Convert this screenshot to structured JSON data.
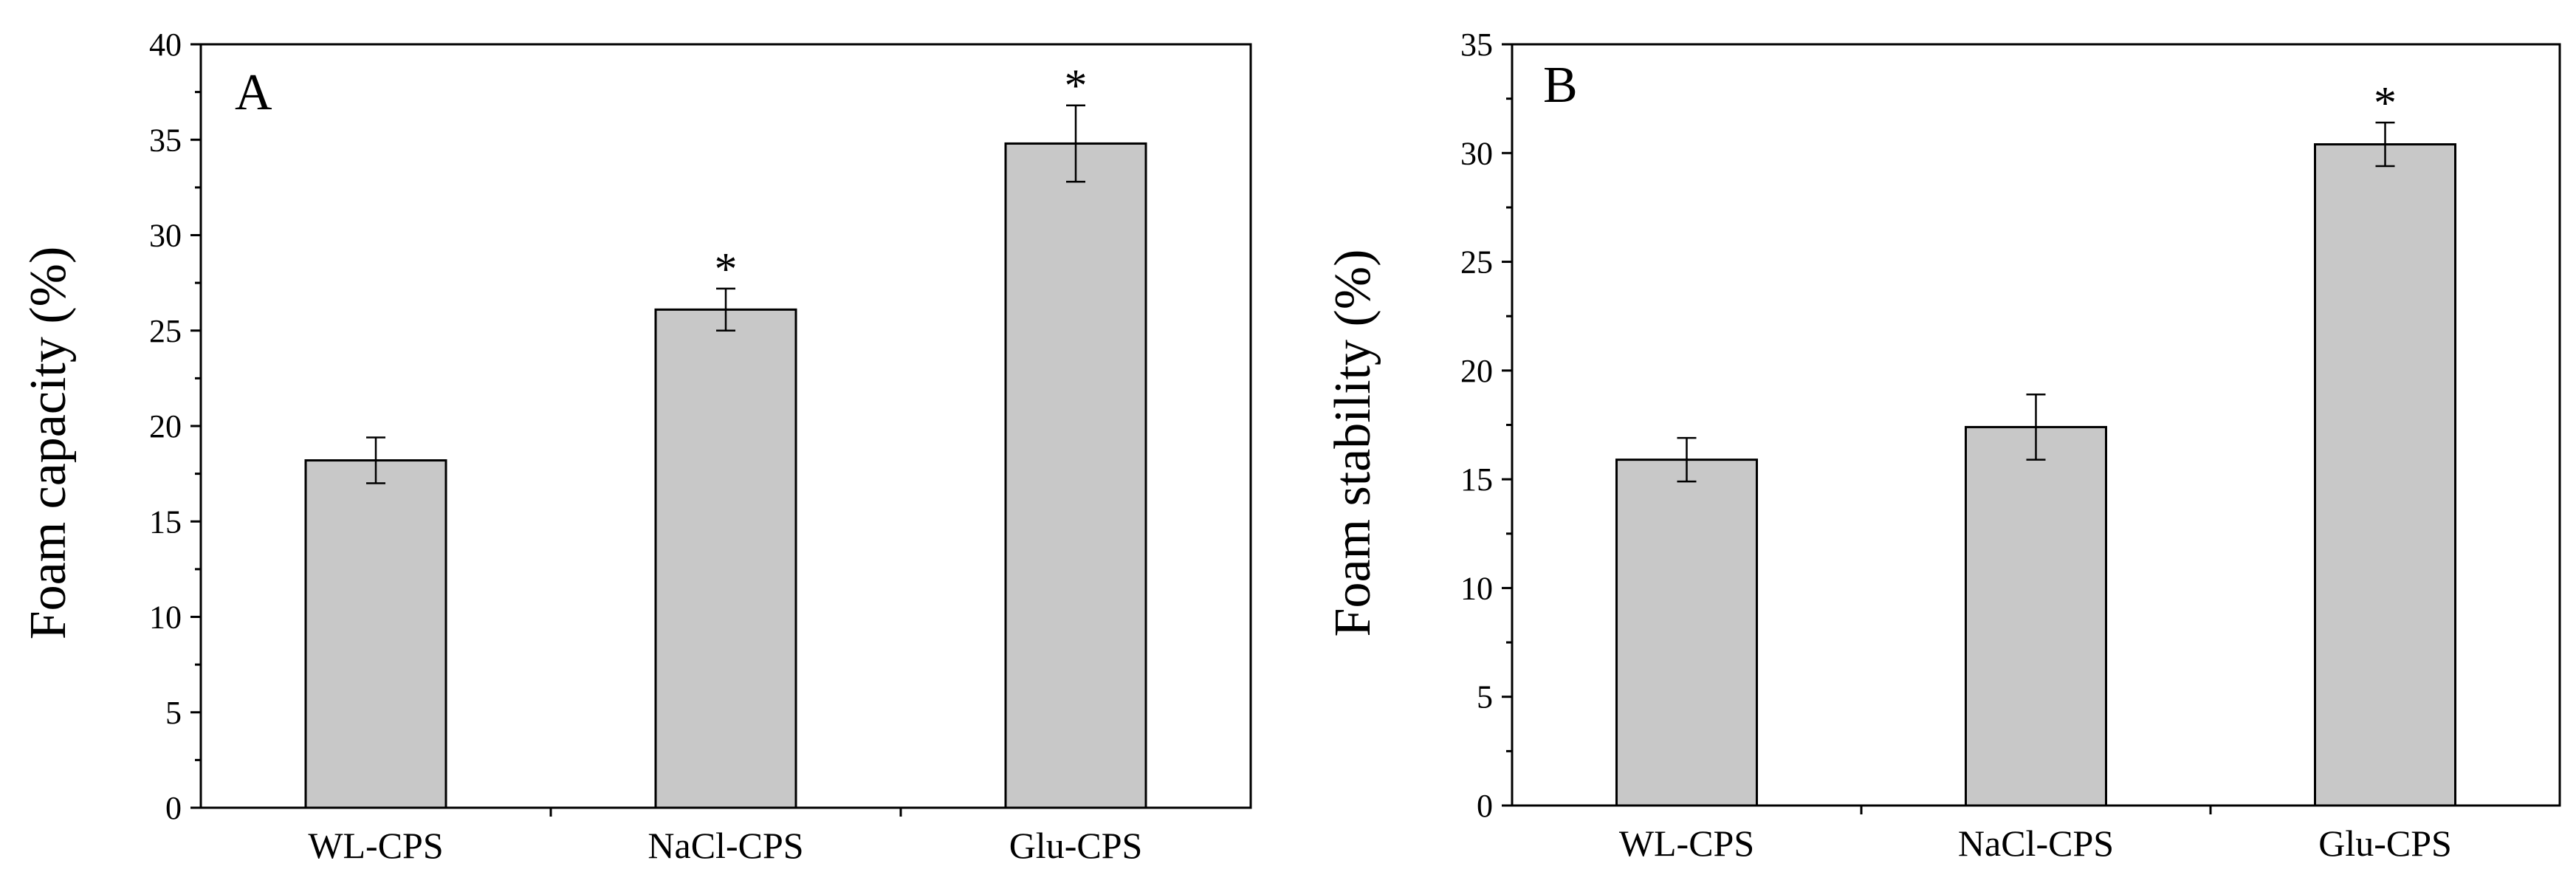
{
  "chart_data": [
    {
      "type": "bar",
      "panel_label": "A",
      "categories": [
        "WL-CPS",
        "NaCl-CPS",
        "Glu-CPS"
      ],
      "values": [
        18.2,
        26.1,
        34.8
      ],
      "errors": [
        1.2,
        1.1,
        2.0
      ],
      "significance": [
        "",
        "*",
        "*"
      ],
      "xlabel": "",
      "ylabel": "Foam capacity (%)",
      "ylim": [
        0,
        40
      ],
      "yticks": [
        "0",
        "5",
        "10",
        "15",
        "20",
        "25",
        "30",
        "35",
        "40"
      ],
      "bar_color": "#c8c8c8"
    },
    {
      "type": "bar",
      "panel_label": "B",
      "categories": [
        "WL-CPS",
        "NaCl-CPS",
        "Glu-CPS"
      ],
      "values": [
        15.9,
        17.4,
        30.4
      ],
      "errors": [
        1.0,
        1.5,
        1.0
      ],
      "significance": [
        "",
        "",
        "*"
      ],
      "xlabel": "",
      "ylabel": "Foam stability (%)",
      "ylim": [
        0,
        35
      ],
      "yticks": [
        "0",
        "5",
        "10",
        "15",
        "20",
        "25",
        "30",
        "35"
      ],
      "bar_color": "#c8c8c8"
    }
  ]
}
